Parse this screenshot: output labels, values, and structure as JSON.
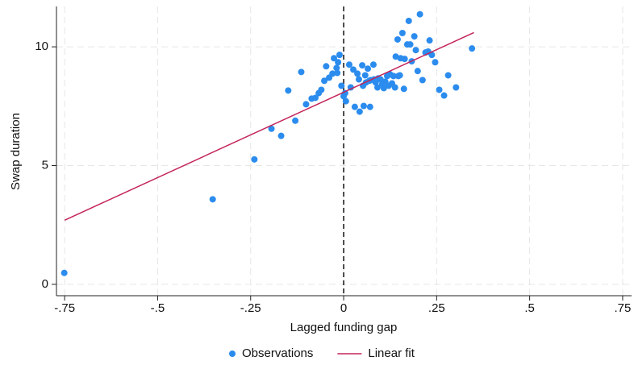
{
  "chart_data": {
    "type": "scatter",
    "xlabel": "Lagged funding gap",
    "ylabel": "Swap duration",
    "xlim": [
      -0.772,
      0.774
    ],
    "ylim": [
      -0.48,
      11.7
    ],
    "xticks": [
      {
        "value": -0.75,
        "label": "-.75"
      },
      {
        "value": -0.5,
        "label": "-.5"
      },
      {
        "value": -0.25,
        "label": "-.25"
      },
      0,
      {
        "value": 0.25,
        "label": ".25"
      },
      {
        "value": 0.5,
        "label": ".5"
      },
      {
        "value": 0.75,
        "label": ".75"
      }
    ],
    "yticks": [
      0,
      5,
      10
    ],
    "grid": true,
    "vline": 0,
    "legend": "bottom",
    "series": [
      {
        "name": "Observations",
        "type": "scatter",
        "color": "#2b8cee",
        "x": [
          -0.751,
          -0.352,
          -0.24,
          -0.194,
          -0.168,
          -0.149,
          -0.13,
          -0.114,
          -0.101,
          -0.086,
          -0.076,
          -0.067,
          -0.06,
          -0.052,
          -0.047,
          -0.039,
          -0.03,
          -0.026,
          -0.019,
          -0.015,
          -0.011,
          -0.017,
          -0.006,
          0,
          0.004,
          0.006,
          0.015,
          0.019,
          0.026,
          0.03,
          0.037,
          0.041,
          0.043,
          0.05,
          0.052,
          0.054,
          0.058,
          0.06,
          0.065,
          0.069,
          0.073,
          0.071,
          0.08,
          0.082,
          0.086,
          0.091,
          0.093,
          0.099,
          0.104,
          0.108,
          0.112,
          0.117,
          0.121,
          0.125,
          0.13,
          0.134,
          0.138,
          0.14,
          0.145,
          0.147,
          0.151,
          0.153,
          0.158,
          0.162,
          0.164,
          0.171,
          0.175,
          0.179,
          0.183,
          0.19,
          0.194,
          0.199,
          0.205,
          0.212,
          0.22,
          0.227,
          0.231,
          0.237,
          0.246,
          0.257,
          0.27,
          0.281,
          0.302,
          0.345
        ],
        "values": [
          0.48,
          3.58,
          5.26,
          6.55,
          6.25,
          8.16,
          6.89,
          8.94,
          7.58,
          7.82,
          7.85,
          8.05,
          8.19,
          8.57,
          9.18,
          8.7,
          8.87,
          9.52,
          9.11,
          9.35,
          9.66,
          8.9,
          8.36,
          7.92,
          8.05,
          7.71,
          9.25,
          8.29,
          9.04,
          7.47,
          8.87,
          8.63,
          7.27,
          9.22,
          8.36,
          7.51,
          8.8,
          8.5,
          9.08,
          8.57,
          8.6,
          7.47,
          9.25,
          8.63,
          8.5,
          8.29,
          8.67,
          8.63,
          8.43,
          8.26,
          8.53,
          8.77,
          8.36,
          8.84,
          8.46,
          8.77,
          8.29,
          9.59,
          10.31,
          8.77,
          8.8,
          9.52,
          10.58,
          8.23,
          9.49,
          10.1,
          11.09,
          10.1,
          9.39,
          10.44,
          9.86,
          8.98,
          11.37,
          8.6,
          9.76,
          9.8,
          10.27,
          9.66,
          9.35,
          8.19,
          7.95,
          8.8,
          8.29,
          9.93
        ]
      },
      {
        "name": "Linear fit",
        "type": "line",
        "color": "#c4245a",
        "x": [
          -0.75,
          0.35
        ],
        "values": [
          2.7,
          10.6
        ]
      }
    ]
  }
}
